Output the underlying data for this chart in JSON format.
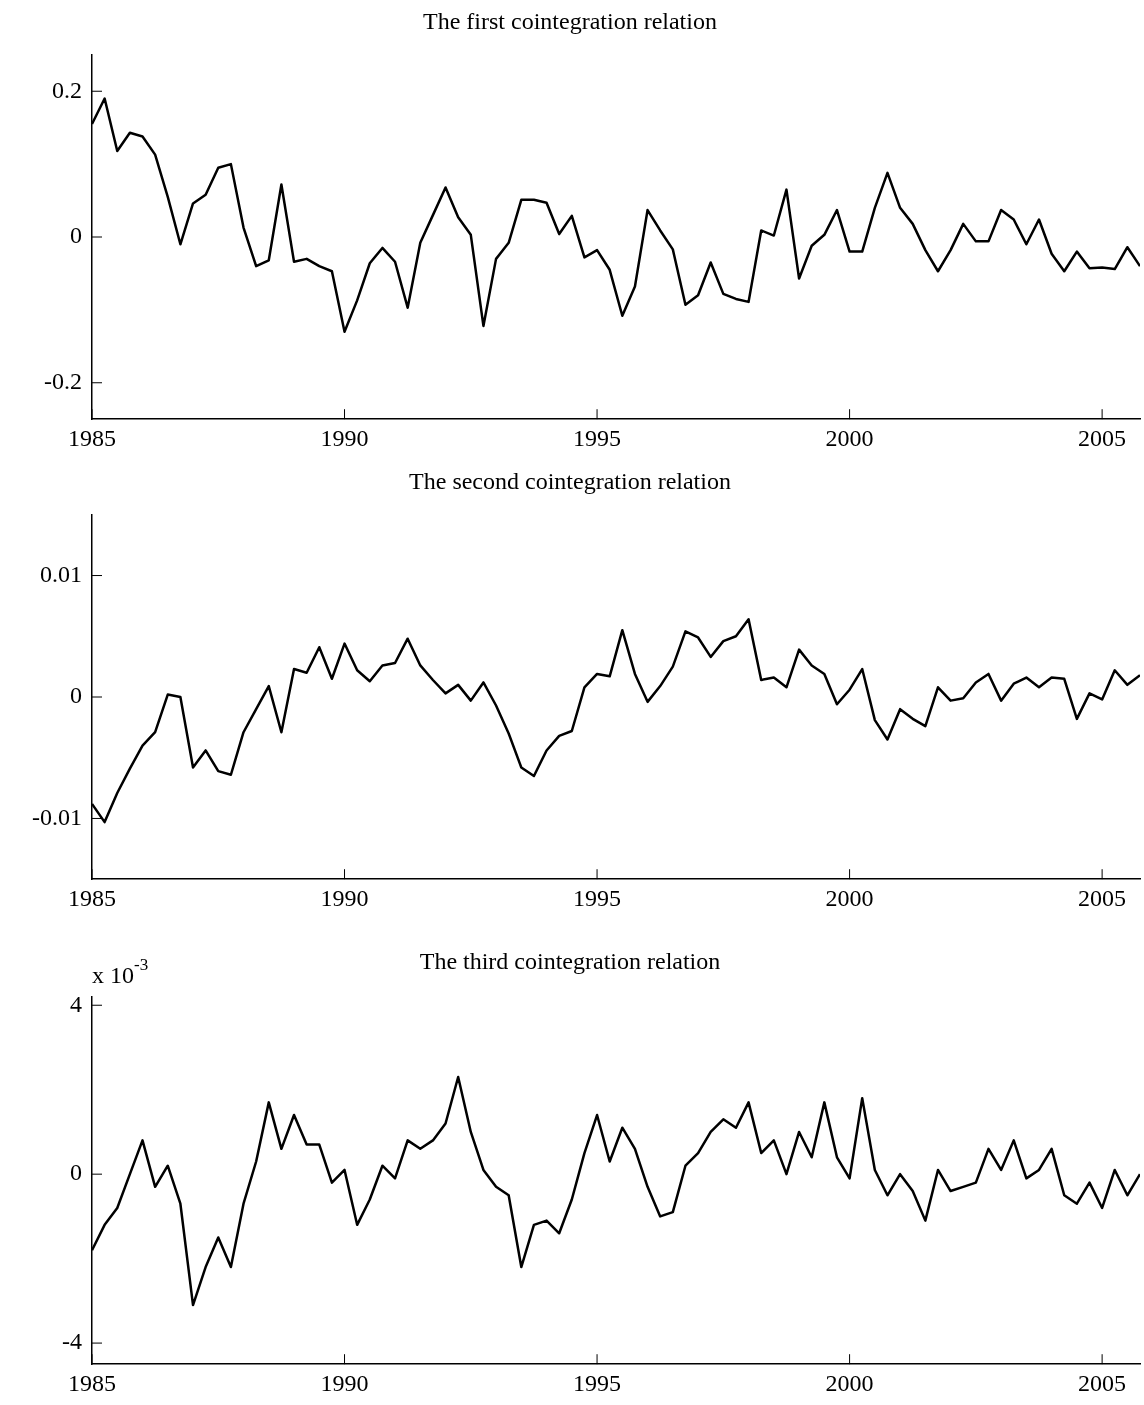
{
  "chart_data": [
    {
      "type": "line",
      "title": "The first cointegration relation",
      "color": "#000000",
      "xlim": [
        1985,
        2005.75
      ],
      "xticks": [
        1985,
        1990,
        1995,
        2000,
        2005
      ],
      "ylim": [
        -0.25,
        0.25
      ],
      "yticks": [
        -0.2,
        0,
        0.2
      ],
      "x": [
        1985,
        1985.25,
        1985.5,
        1985.75,
        1986,
        1986.25,
        1986.5,
        1986.75,
        1987,
        1987.25,
        1987.5,
        1987.75,
        1988,
        1988.25,
        1988.5,
        1988.75,
        1989,
        1989.25,
        1989.5,
        1989.75,
        1990,
        1990.25,
        1990.5,
        1990.75,
        1991,
        1991.25,
        1991.5,
        1991.75,
        1992,
        1992.25,
        1992.5,
        1992.75,
        1993,
        1993.25,
        1993.5,
        1993.75,
        1994,
        1994.25,
        1994.5,
        1994.75,
        1995,
        1995.25,
        1995.5,
        1995.75,
        1996,
        1996.25,
        1996.5,
        1996.75,
        1997,
        1997.25,
        1997.5,
        1997.75,
        1998,
        1998.25,
        1998.5,
        1998.75,
        1999,
        1999.25,
        1999.5,
        1999.75,
        2000,
        2000.25,
        2000.5,
        2000.75,
        2001,
        2001.25,
        2001.5,
        2001.75,
        2002,
        2002.25,
        2002.5,
        2002.75,
        2003,
        2003.25,
        2003.5,
        2003.75,
        2004,
        2004.25,
        2004.5,
        2004.75,
        2005,
        2005.25,
        2005.5,
        2005.75
      ],
      "values": [
        0.155,
        0.19,
        0.118,
        0.143,
        0.138,
        0.113,
        0.055,
        -0.01,
        0.046,
        0.058,
        0.095,
        0.1,
        0.013,
        -0.04,
        -0.032,
        0.072,
        -0.034,
        -0.03,
        -0.04,
        -0.047,
        -0.13,
        -0.087,
        -0.036,
        -0.015,
        -0.034,
        -0.097,
        -0.008,
        0.03,
        0.068,
        0.027,
        0.003,
        -0.122,
        -0.03,
        -0.008,
        0.051,
        0.051,
        0.047,
        0.004,
        0.029,
        -0.028,
        -0.018,
        -0.045,
        -0.108,
        -0.068,
        0.037,
        0.009,
        -0.017,
        -0.093,
        -0.08,
        -0.035,
        -0.078,
        -0.085,
        -0.089,
        0.009,
        0.002,
        0.065,
        -0.057,
        -0.012,
        0.003,
        0.037,
        -0.02,
        -0.02,
        0.04,
        0.088,
        0.04,
        0.018,
        -0.018,
        -0.047,
        -0.018,
        0.018,
        -0.006,
        -0.006,
        0.037,
        0.024,
        -0.01,
        0.024,
        -0.023,
        -0.047,
        -0.02,
        -0.043,
        -0.042,
        -0.044,
        -0.014,
        -0.04
      ]
    },
    {
      "type": "line",
      "title": "The second cointegration relation",
      "color": "#000000",
      "xlim": [
        1985,
        2005.75
      ],
      "xticks": [
        1985,
        1990,
        1995,
        2000,
        2005
      ],
      "ylim": [
        -0.015,
        0.015
      ],
      "yticks": [
        -0.01,
        0,
        0.01
      ],
      "x": [
        1985,
        1985.25,
        1985.5,
        1985.75,
        1986,
        1986.25,
        1986.5,
        1986.75,
        1987,
        1987.25,
        1987.5,
        1987.75,
        1988,
        1988.25,
        1988.5,
        1988.75,
        1989,
        1989.25,
        1989.5,
        1989.75,
        1990,
        1990.25,
        1990.5,
        1990.75,
        1991,
        1991.25,
        1991.5,
        1991.75,
        1992,
        1992.25,
        1992.5,
        1992.75,
        1993,
        1993.25,
        1993.5,
        1993.75,
        1994,
        1994.25,
        1994.5,
        1994.75,
        1995,
        1995.25,
        1995.5,
        1995.75,
        1996,
        1996.25,
        1996.5,
        1996.75,
        1997,
        1997.25,
        1997.5,
        1997.75,
        1998,
        1998.25,
        1998.5,
        1998.75,
        1999,
        1999.25,
        1999.5,
        1999.75,
        2000,
        2000.25,
        2000.5,
        2000.75,
        2001,
        2001.25,
        2001.5,
        2001.75,
        2002,
        2002.25,
        2002.5,
        2002.75,
        2003,
        2003.25,
        2003.5,
        2003.75,
        2004,
        2004.25,
        2004.5,
        2004.75,
        2005,
        2005.25,
        2005.5,
        2005.75
      ],
      "values": [
        -0.0088,
        -0.0103,
        -0.0079,
        -0.0059,
        -0.004,
        -0.0029,
        0.0002,
        0,
        -0.0058,
        -0.0044,
        -0.0061,
        -0.0064,
        -0.0029,
        -0.001,
        0.0009,
        -0.0029,
        0.0023,
        0.002,
        0.0041,
        0.0015,
        0.0044,
        0.0022,
        0.0013,
        0.0026,
        0.0028,
        0.0048,
        0.0026,
        0.0014,
        0.0003,
        0.001,
        -0.0003,
        0.0012,
        -0.0007,
        -0.003,
        -0.0058,
        -0.0065,
        -0.0044,
        -0.0032,
        -0.0028,
        0.0008,
        0.0019,
        0.0017,
        0.0055,
        0.0019,
        -0.0004,
        0.0009,
        0.0025,
        0.0054,
        0.0049,
        0.0033,
        0.0046,
        0.005,
        0.0064,
        0.0014,
        0.0016,
        0.0008,
        0.0039,
        0.0026,
        0.0019,
        -0.0006,
        0.0006,
        0.0023,
        -0.0019,
        -0.0035,
        -0.001,
        -0.0018,
        -0.0024,
        0.0008,
        -0.0003,
        -0.0001,
        0.0012,
        0.0019,
        -0.0003,
        0.0011,
        0.0016,
        0.0008,
        0.0016,
        0.0015,
        -0.0018,
        0.0003,
        -0.0002,
        0.0022,
        0.001,
        0.0018
      ]
    },
    {
      "type": "line",
      "title": "The third cointegration relation",
      "annotations": [
        "x 10$^{-3}$"
      ],
      "color": "#000000",
      "xlim": [
        1985,
        2005.75
      ],
      "xticks": [
        1985,
        1990,
        1995,
        2000,
        2005
      ],
      "ylim": [
        -4.5,
        4.2
      ],
      "yticks": [
        -4,
        0,
        4
      ],
      "x": [
        1985,
        1985.25,
        1985.5,
        1985.75,
        1986,
        1986.25,
        1986.5,
        1986.75,
        1987,
        1987.25,
        1987.5,
        1987.75,
        1988,
        1988.25,
        1988.5,
        1988.75,
        1989,
        1989.25,
        1989.5,
        1989.75,
        1990,
        1990.25,
        1990.5,
        1990.75,
        1991,
        1991.25,
        1991.5,
        1991.75,
        1992,
        1992.25,
        1992.5,
        1992.75,
        1993,
        1993.25,
        1993.5,
        1993.75,
        1994,
        1994.25,
        1994.5,
        1994.75,
        1995,
        1995.25,
        1995.5,
        1995.75,
        1996,
        1996.25,
        1996.5,
        1996.75,
        1997,
        1997.25,
        1997.5,
        1997.75,
        1998,
        1998.25,
        1998.5,
        1998.75,
        1999,
        1999.25,
        1999.5,
        1999.75,
        2000,
        2000.25,
        2000.5,
        2000.75,
        2001,
        2001.25,
        2001.5,
        2001.75,
        2002,
        2002.25,
        2002.5,
        2002.75,
        2003,
        2003.25,
        2003.5,
        2003.75,
        2004,
        2004.25,
        2004.5,
        2004.75,
        2005,
        2005.25,
        2005.5,
        2005.75
      ],
      "values": [
        -1.8,
        -1.2,
        -0.8,
        0,
        0.8,
        -0.3,
        0.2,
        -0.7,
        -3.1,
        -2.2,
        -1.5,
        -2.2,
        -0.7,
        0.3,
        1.7,
        0.6,
        1.4,
        0.7,
        0.7,
        -0.2,
        0.1,
        -1.2,
        -0.6,
        0.2,
        -0.1,
        0.8,
        0.6,
        0.8,
        1.2,
        2.3,
        1,
        0.1,
        -0.3,
        -0.5,
        -2.2,
        -1.2,
        -1.1,
        -1.4,
        -0.6,
        0.5,
        1.4,
        0.3,
        1.1,
        0.6,
        -0.3,
        -1,
        -0.9,
        0.2,
        0.5,
        1,
        1.3,
        1.1,
        1.7,
        0.5,
        0.8,
        0,
        1,
        0.4,
        1.7,
        0.4,
        -0.1,
        1.8,
        0.1,
        -0.5,
        0,
        -0.4,
        -1.1,
        0.1,
        -0.4,
        -0.3,
        -0.2,
        0.6,
        0.1,
        0.8,
        -0.1,
        0.1,
        0.6,
        -0.5,
        -0.7,
        -0.2,
        -0.8,
        0.1,
        -0.5,
        0
      ]
    }
  ]
}
